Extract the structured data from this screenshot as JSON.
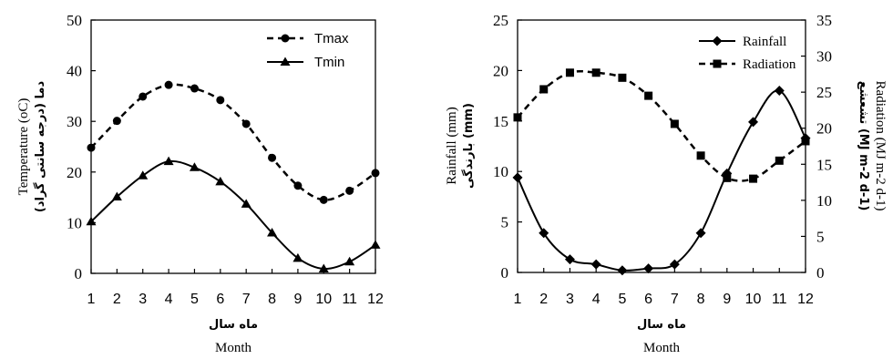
{
  "chart_data": [
    {
      "type": "line",
      "x": [
        1,
        2,
        3,
        4,
        5,
        6,
        7,
        8,
        9,
        10,
        11,
        12
      ],
      "series": [
        {
          "name": "Tmax",
          "values": [
            24.8,
            30.1,
            34.9,
            37.2,
            36.5,
            34.2,
            29.5,
            22.8,
            17.3,
            14.5,
            16.3,
            19.8
          ],
          "line_style": "dashed",
          "marker": "circle"
        },
        {
          "name": "Tmin",
          "values": [
            10.2,
            15.1,
            19.3,
            22.1,
            20.9,
            18.1,
            13.7,
            8.0,
            3.0,
            0.9,
            2.3,
            5.6
          ],
          "line_style": "solid",
          "marker": "triangle"
        }
      ],
      "xlabel": "Month",
      "xlabel_fa": "ماه سال",
      "ylabel": "Temperature (oC)",
      "ylabel_fa": "دما (درجه سانتی گراد)",
      "xlim": [
        1,
        12
      ],
      "ylim": [
        0,
        50
      ],
      "yticks": [
        0,
        10,
        20,
        30,
        40,
        50
      ],
      "grid": false,
      "legend": "top-right"
    },
    {
      "type": "line",
      "x": [
        1,
        2,
        3,
        4,
        5,
        6,
        7,
        8,
        9,
        10,
        11,
        12
      ],
      "series": [
        {
          "name": "Rainfall",
          "values": [
            9.4,
            3.9,
            1.3,
            0.8,
            0.2,
            0.4,
            0.8,
            3.9,
            9.8,
            14.9,
            18.0,
            13.3
          ],
          "axis": "left",
          "line_style": "solid",
          "marker": "diamond"
        },
        {
          "name": "Radiation",
          "values": [
            21.5,
            25.4,
            27.7,
            27.7,
            27.0,
            24.5,
            20.6,
            16.2,
            13.1,
            13.0,
            15.5,
            18.2
          ],
          "axis": "right",
          "line_style": "dashed",
          "marker": "square"
        }
      ],
      "xlabel": "Month",
      "xlabel_fa": "ماه سال",
      "ylabel_left": "Rainfall (mm)",
      "ylabel_left_fa": "بارندگی (mm)",
      "ylabel_right": "Radiation (MJ m-2 d-1)",
      "ylabel_right_fa": "تشعشع (MJ m-2 d-1)",
      "xlim": [
        1,
        12
      ],
      "ylim_left": [
        0,
        25
      ],
      "ylim_right": [
        0,
        35
      ],
      "yticks_left": [
        0,
        5,
        10,
        15,
        20,
        25
      ],
      "yticks_right": [
        0,
        5,
        10,
        15,
        20,
        25,
        30,
        35
      ],
      "grid": false,
      "legend": "top-right"
    }
  ]
}
